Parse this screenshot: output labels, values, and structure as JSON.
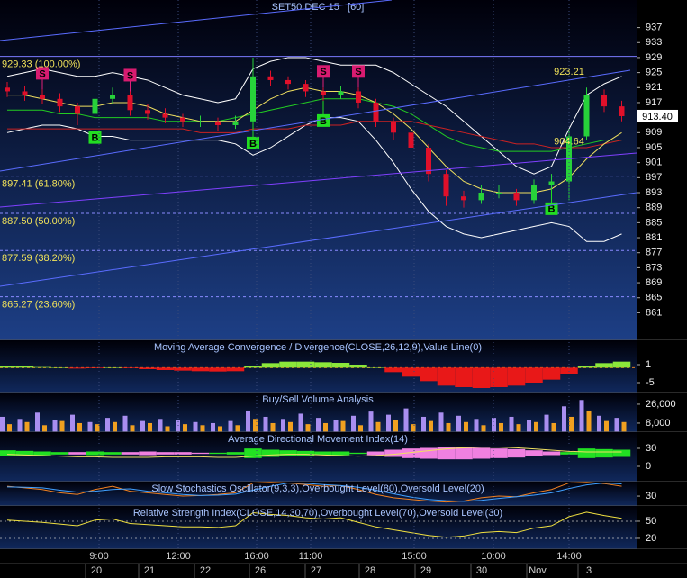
{
  "chart_data": [
    {
      "type": "candlestick",
      "title": "SET50 DEC 15   [60]",
      "up_color": "#27d23a",
      "down_color": "#e0102a",
      "candles": [
        [
          921,
          922.5,
          918.5,
          920
        ],
        [
          920,
          921.5,
          917.5,
          919
        ],
        [
          919,
          920.5,
          916.5,
          918
        ],
        [
          918,
          919.5,
          914.5,
          916
        ],
        [
          916,
          917,
          911,
          914
        ],
        [
          914,
          920.5,
          913,
          918
        ],
        [
          918,
          921,
          916.5,
          919
        ],
        [
          919,
          920,
          913.5,
          915
        ],
        [
          915,
          916.5,
          912.5,
          914
        ],
        [
          914,
          915.5,
          911.5,
          913
        ],
        [
          913,
          914,
          910.5,
          912
        ],
        [
          912,
          913.5,
          910.5,
          912
        ],
        [
          912,
          913,
          909.5,
          911
        ],
        [
          911,
          913.5,
          910,
          912
        ],
        [
          912,
          929,
          911.5,
          924
        ],
        [
          924,
          925.5,
          921.5,
          923
        ],
        [
          923,
          924,
          920.5,
          922
        ],
        [
          922,
          923,
          918.5,
          920
        ],
        [
          920,
          921,
          917.5,
          919
        ],
        [
          919,
          921.5,
          918,
          920
        ],
        [
          920,
          921,
          915.5,
          917
        ],
        [
          917,
          918,
          910.5,
          912
        ],
        [
          912,
          913,
          907,
          909
        ],
        [
          909,
          910,
          903.5,
          905
        ],
        [
          905,
          906,
          896,
          898
        ],
        [
          898,
          899,
          889.5,
          892
        ],
        [
          892,
          893.5,
          889,
          891
        ],
        [
          891,
          895,
          890,
          893
        ],
        [
          893,
          895,
          891.5,
          893
        ],
        [
          893,
          894,
          889.5,
          891
        ],
        [
          891,
          896.5,
          890,
          895
        ],
        [
          895,
          898,
          894,
          896
        ],
        [
          896,
          910,
          891,
          908
        ],
        [
          908,
          921,
          907,
          919
        ],
        [
          919,
          920.5,
          914.5,
          916
        ],
        [
          916,
          917.5,
          912,
          913.4
        ]
      ],
      "overlays": [
        {
          "color": "#ffffff",
          "values": [
            924,
            925,
            926,
            925,
            924,
            924,
            925,
            924,
            923,
            921,
            919,
            918,
            917,
            918,
            926,
            928,
            929,
            929,
            928,
            927,
            927,
            927,
            925,
            922,
            919,
            916,
            912,
            908,
            904,
            900,
            898,
            900,
            910,
            919,
            922,
            924
          ]
        },
        {
          "color": "#ffffff",
          "values": [
            909,
            910,
            911,
            911,
            910,
            908,
            908,
            907,
            907,
            907,
            907,
            907,
            907,
            906,
            903,
            905,
            908,
            911,
            913,
            913,
            912,
            907,
            901,
            894,
            888,
            884,
            882,
            881,
            882,
            883,
            884,
            885,
            884,
            880,
            880,
            882
          ]
        },
        {
          "color": "#22cc22",
          "values": [
            915,
            915,
            915,
            914,
            914,
            913,
            913,
            913,
            913,
            912,
            912,
            912,
            912,
            913,
            914,
            915,
            916,
            917,
            918,
            918,
            918,
            917,
            916,
            914,
            911,
            908,
            906,
            905,
            904,
            904,
            904,
            904,
            905,
            906,
            907,
            907
          ]
        },
        {
          "color": "#cc2222",
          "values": [
            910,
            910,
            910,
            910,
            910,
            910,
            910,
            910,
            910,
            910,
            910,
            909,
            909,
            909,
            910,
            910,
            910,
            911,
            911,
            911,
            912,
            912,
            912,
            912,
            911,
            910,
            909,
            908,
            907,
            906,
            906,
            905,
            905,
            905,
            906,
            907
          ]
        },
        {
          "color": "#f0e060",
          "values": [
            919,
            919,
            918,
            917,
            916,
            916,
            917,
            917,
            916,
            914,
            913,
            912,
            912,
            912,
            915,
            918,
            920,
            921,
            920,
            920,
            919,
            917,
            914,
            910,
            905,
            900,
            896,
            894,
            893,
            893,
            893,
            894,
            897,
            902,
            906,
            909
          ]
        }
      ],
      "ylim": [
        857.5,
        940.5
      ],
      "yticks": [
        861,
        865,
        869,
        873,
        877,
        881,
        885,
        889,
        893,
        897,
        901,
        905,
        909,
        913,
        917,
        921,
        925,
        929,
        933,
        937
      ],
      "fib_levels": [
        {
          "value": 929.33,
          "label": "929.33 (100.00%)"
        },
        {
          "value": 897.41,
          "label": "897.41 (61.80%)"
        },
        {
          "value": 887.5,
          "label": "887.50 (50.00%)"
        },
        {
          "value": 877.59,
          "label": "877.59 (38.20%)"
        },
        {
          "value": 865.27,
          "label": "865.27 (23.60%)"
        }
      ],
      "annotations": [
        {
          "value": 923.21,
          "label": "923.21",
          "index": 32
        },
        {
          "value": 904.64,
          "label": "904.64",
          "index": 32
        }
      ],
      "last_price": {
        "value": 913.4,
        "label": "913.40"
      },
      "signals": [
        {
          "label": "S",
          "index": 2
        },
        {
          "label": "B",
          "index": 5
        },
        {
          "label": "S",
          "index": 7
        },
        {
          "label": "B",
          "index": 14
        },
        {
          "label": "S",
          "index": 18
        },
        {
          "label": "B",
          "index": 18
        },
        {
          "label": "S",
          "index": 20
        },
        {
          "label": "B",
          "index": 31
        }
      ]
    },
    {
      "type": "histogram",
      "title": "Moving Average Convergence / Divergence(CLOSE,26,12,9),Value Line(0)",
      "pos_color": "#8be83a",
      "neg_color": "#e81818",
      "values": [
        0.5,
        0.4,
        0.2,
        0,
        -0.3,
        -0.2,
        0,
        -0.2,
        -0.5,
        -0.8,
        -1,
        -1.2,
        -1.3,
        -1.2,
        0.5,
        1.5,
        2,
        2,
        1.8,
        1.6,
        1,
        0,
        -1.5,
        -3,
        -4.5,
        -6,
        -6.5,
        -6.8,
        -6.5,
        -6,
        -5,
        -4,
        -2,
        0.5,
        1.5,
        2
      ],
      "ylim": [
        -8.3,
        9.1
      ],
      "yticks": [
        1,
        -5
      ]
    },
    {
      "type": "bar",
      "title": "Buy/Sell Volume Analysis",
      "series": [
        {
          "color": "#a98ef0",
          "values": [
            14000,
            12000,
            18000,
            11000,
            16000,
            9000,
            13000,
            15000,
            10000,
            12000,
            11000,
            9000,
            8000,
            10000,
            20000,
            14000,
            12000,
            17000,
            13000,
            11000,
            15000,
            19000,
            16000,
            22000,
            14000,
            18000,
            15000,
            12000,
            13000,
            14000,
            11000,
            16000,
            24000,
            30000,
            15000,
            13000
          ]
        },
        {
          "color": "#f0a020",
          "values": [
            7000,
            9000,
            6000,
            10000,
            8000,
            7000,
            9000,
            6000,
            8000,
            5000,
            7000,
            6000,
            5000,
            6000,
            12000,
            8000,
            9000,
            7000,
            8000,
            10000,
            6000,
            9000,
            11000,
            7000,
            10000,
            8000,
            9000,
            6000,
            8000,
            7000,
            9000,
            8000,
            14000,
            20000,
            10000,
            9000
          ]
        }
      ],
      "ylim": [
        -600,
        37100
      ],
      "yticks": [
        {
          "value": 26000,
          "label": "26,000"
        },
        {
          "value": 8000,
          "label": "8,000"
        }
      ]
    },
    {
      "type": "area",
      "title": "Average Directional Movement Index(14)",
      "pos_color": "#22e022",
      "neg_color": "#f080e0",
      "values": [
        5,
        4,
        3,
        2,
        -2,
        3,
        2,
        -2,
        -3,
        -2,
        -2,
        -1,
        1,
        2,
        8,
        6,
        5,
        4,
        3,
        3,
        1,
        -3,
        -6,
        -8,
        -9,
        -10,
        -10,
        -9,
        -8,
        -7,
        -5,
        -3,
        2,
        8,
        7,
        6
      ],
      "series": [
        {
          "color": "#f0e060",
          "values": [
            20,
            19,
            18,
            17,
            16,
            16,
            15,
            15,
            15,
            16,
            16,
            16,
            15,
            15,
            17,
            19,
            20,
            20,
            19,
            18,
            17,
            18,
            20,
            23,
            26,
            29,
            31,
            32,
            32,
            31,
            29,
            27,
            25,
            24,
            24,
            24
          ]
        }
      ],
      "ylim": [
        -25.5,
        57
      ],
      "yticks": [
        30,
        0
      ]
    },
    {
      "type": "line",
      "title": "Slow Stochastics Oscillator(9,3,3),Overbought Level(80),Oversold Level(20)",
      "series": [
        {
          "color": "#f08020",
          "values": [
            60,
            55,
            50,
            40,
            35,
            50,
            60,
            45,
            40,
            35,
            30,
            32,
            35,
            40,
            70,
            72,
            70,
            65,
            60,
            62,
            50,
            35,
            25,
            20,
            15,
            12,
            15,
            25,
            30,
            28,
            40,
            50,
            70,
            72,
            68,
            60
          ]
        },
        {
          "color": "#40a0ff",
          "values": [
            58,
            57,
            55,
            48,
            42,
            45,
            50,
            52,
            45,
            40,
            35,
            32,
            33,
            36,
            48,
            60,
            70,
            69,
            65,
            62,
            57,
            48,
            37,
            27,
            20,
            16,
            14,
            17,
            23,
            28,
            33,
            40,
            53,
            64,
            70,
            67
          ]
        }
      ],
      "ylim": [
        0,
        74
      ],
      "yticks": [
        30
      ]
    },
    {
      "type": "line",
      "title": "Relative Strength Index(CLOSE,14,30,70),Overbought Level(70),Oversold Level(30)",
      "series": [
        {
          "color": "#f0e040",
          "values": [
            52,
            50,
            48,
            45,
            42,
            52,
            54,
            46,
            44,
            42,
            40,
            40,
            39,
            42,
            65,
            62,
            60,
            56,
            54,
            56,
            48,
            40,
            35,
            30,
            25,
            22,
            24,
            30,
            32,
            30,
            38,
            42,
            58,
            66,
            60,
            55
          ]
        }
      ],
      "ylim": [
        1,
        76.8
      ],
      "yticks": [
        50,
        20
      ],
      "grid": true
    }
  ],
  "x_axis": {
    "times": [
      "9:00",
      "12:00",
      "16:00",
      "11:00",
      "15:00",
      "10:00",
      "14:00"
    ],
    "dates": [
      "20",
      "21",
      "22",
      "26",
      "27",
      "28",
      "29",
      "30",
      "Nov",
      "3"
    ]
  }
}
